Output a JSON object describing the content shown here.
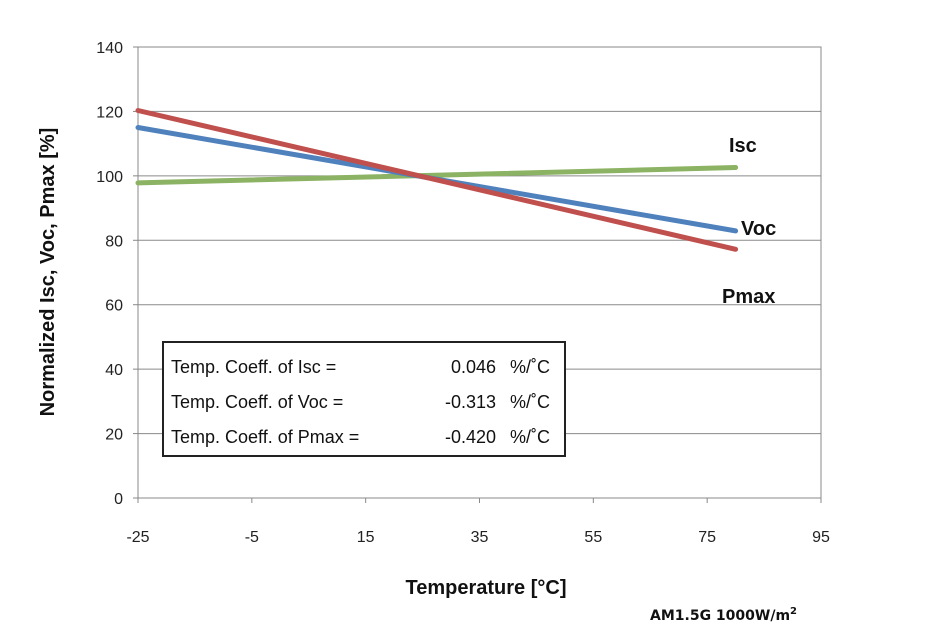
{
  "chart_data": {
    "type": "line",
    "xlabel": "Temperature [°C]",
    "ylabel": "Normalized Isc, Voc, Pmax [%]",
    "xlim": [
      -25,
      95
    ],
    "ylim": [
      0,
      140
    ],
    "x_ticks": [
      "-25",
      "-5",
      "15",
      "35",
      "55",
      "75",
      "95"
    ],
    "y_ticks": [
      "0",
      "20",
      "40",
      "60",
      "80",
      "100",
      "120",
      "140"
    ],
    "grid": "horizontal",
    "series": [
      {
        "name": "Isc",
        "color": "#8cb363",
        "x": [
          -25,
          80
        ],
        "y": [
          97.8,
          102.6
        ]
      },
      {
        "name": "Voc",
        "color": "#4f81bd",
        "x": [
          -25,
          80
        ],
        "y": [
          115.0,
          82.9
        ]
      },
      {
        "name": "Pmax",
        "color": "#c0504d",
        "x": [
          -25,
          80
        ],
        "y": [
          120.3,
          77.2
        ]
      }
    ],
    "coefficients": [
      {
        "label": "Temp. Coeff. of Isc =",
        "value": "0.046",
        "unit": "%/˚C"
      },
      {
        "label": "Temp. Coeff. of Voc =",
        "value": "-0.313",
        "unit": "%/˚C"
      },
      {
        "label": "Temp. Coeff. of Pmax =",
        "value": "-0.420",
        "unit": "%/˚C"
      }
    ],
    "condition_note": {
      "text": "AM1.5G 1000W/m",
      "superscript": "2"
    }
  }
}
